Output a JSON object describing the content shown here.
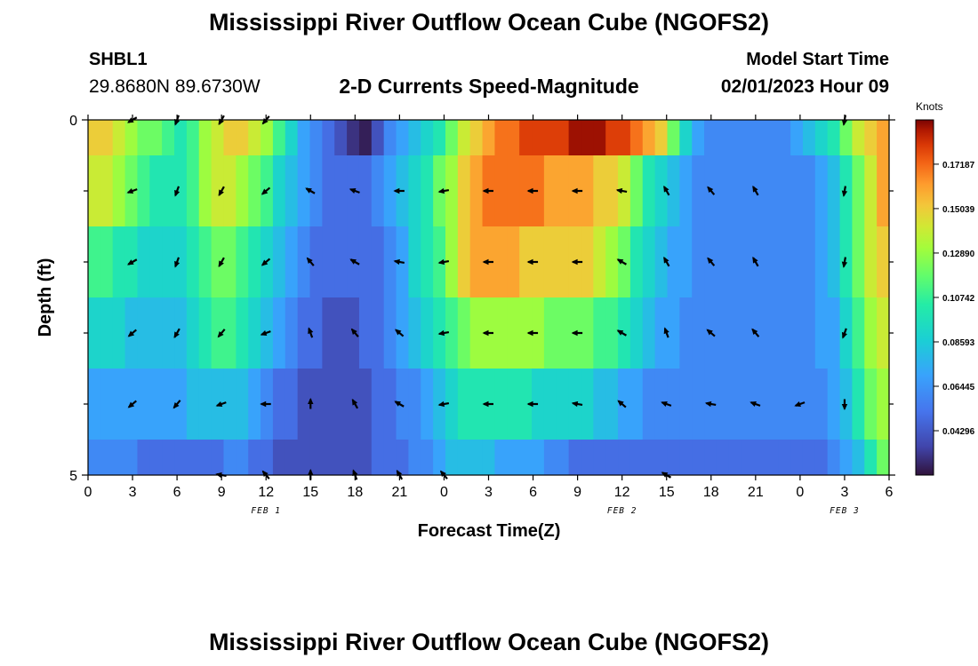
{
  "page": {
    "title_top": "Mississippi River Outflow Ocean Cube (NGOFS2)",
    "title_bottom": "Mississippi River Outflow Ocean Cube (NGOFS2)",
    "station_id": "SHBL1",
    "station_coords": "29.8680N  89.6730W",
    "subtitle": "2-D Currents Speed-Magnitude",
    "model_start_label": "Model Start Time",
    "model_start_value": "02/01/2023 Hour 09"
  },
  "chart_data": {
    "type": "heatmap",
    "title": "2-D Currents Speed-Magnitude",
    "xlabel": "Forecast Time(Z)",
    "ylabel": "Depth (ft)",
    "x_range_hours": [
      0,
      54
    ],
    "ylim": [
      0,
      5
    ],
    "x_ticks": [
      "0",
      "3",
      "6",
      "9",
      "12",
      "15",
      "18",
      "21",
      "0",
      "3",
      "6",
      "9",
      "12",
      "15",
      "18",
      "21",
      "0",
      "3",
      "6"
    ],
    "date_labels": [
      {
        "label": "FEB 1",
        "at_hour": 12
      },
      {
        "label": "FEB 2",
        "at_hour": 36
      },
      {
        "label": "FEB 3",
        "at_hour": 51
      }
    ],
    "y_tick_labels": [
      {
        "value": 0,
        "label": "0"
      },
      {
        "value": 5,
        "label": "5"
      }
    ],
    "y_minor_ticks": [
      1,
      2,
      3,
      4
    ],
    "colorbar": {
      "units": "Knots",
      "min": 0.0215,
      "max": 0.1933,
      "tick_values": [
        0.04296,
        0.06445,
        0.08593,
        0.10742,
        0.1289,
        0.15039,
        0.17187
      ],
      "tick_labels": [
        "0.04296",
        "0.06445",
        "0.08593",
        "0.10742",
        "0.12890",
        "0.15039",
        "0.17187"
      ]
    },
    "layers": [
      {
        "depth_top": 0.0,
        "depth_bottom": 0.5,
        "speeds": [
          0.15,
          0.15,
          0.14,
          0.13,
          0.12,
          0.12,
          0.11,
          0.1,
          0.11,
          0.13,
          0.14,
          0.15,
          0.15,
          0.14,
          0.13,
          0.11,
          0.09,
          0.07,
          0.06,
          0.05,
          0.04,
          0.03,
          0.025,
          0.04,
          0.06,
          0.07,
          0.08,
          0.09,
          0.1,
          0.12,
          0.14,
          0.15,
          0.16,
          0.17,
          0.17,
          0.18,
          0.18,
          0.18,
          0.18,
          0.19,
          0.19,
          0.19,
          0.18,
          0.18,
          0.17,
          0.16,
          0.15,
          0.12,
          0.09,
          0.07,
          0.06,
          0.06,
          0.06,
          0.06,
          0.06,
          0.06,
          0.06,
          0.07,
          0.08,
          0.09,
          0.1,
          0.12,
          0.14,
          0.15,
          0.16
        ]
      },
      {
        "depth_top": 0.5,
        "depth_bottom": 1.5,
        "speeds": [
          0.14,
          0.14,
          0.13,
          0.12,
          0.11,
          0.1,
          0.1,
          0.1,
          0.11,
          0.13,
          0.14,
          0.14,
          0.13,
          0.12,
          0.11,
          0.09,
          0.08,
          0.07,
          0.06,
          0.05,
          0.05,
          0.05,
          0.05,
          0.06,
          0.07,
          0.08,
          0.09,
          0.1,
          0.12,
          0.13,
          0.15,
          0.16,
          0.17,
          0.17,
          0.17,
          0.17,
          0.17,
          0.16,
          0.16,
          0.16,
          0.16,
          0.15,
          0.15,
          0.14,
          0.12,
          0.1,
          0.09,
          0.08,
          0.07,
          0.06,
          0.06,
          0.06,
          0.06,
          0.06,
          0.06,
          0.06,
          0.06,
          0.06,
          0.06,
          0.07,
          0.08,
          0.1,
          0.12,
          0.14,
          0.16
        ]
      },
      {
        "depth_top": 1.5,
        "depth_bottom": 2.5,
        "speeds": [
          0.11,
          0.11,
          0.1,
          0.1,
          0.09,
          0.09,
          0.09,
          0.09,
          0.1,
          0.11,
          0.12,
          0.12,
          0.11,
          0.1,
          0.09,
          0.08,
          0.07,
          0.06,
          0.05,
          0.05,
          0.05,
          0.05,
          0.05,
          0.05,
          0.06,
          0.07,
          0.09,
          0.1,
          0.11,
          0.13,
          0.15,
          0.16,
          0.16,
          0.16,
          0.16,
          0.15,
          0.15,
          0.15,
          0.15,
          0.15,
          0.15,
          0.14,
          0.13,
          0.12,
          0.1,
          0.09,
          0.08,
          0.07,
          0.07,
          0.06,
          0.06,
          0.06,
          0.06,
          0.06,
          0.06,
          0.06,
          0.06,
          0.06,
          0.06,
          0.07,
          0.08,
          0.1,
          0.12,
          0.14,
          0.15
        ]
      },
      {
        "depth_top": 2.5,
        "depth_bottom": 3.5,
        "speeds": [
          0.09,
          0.09,
          0.09,
          0.08,
          0.08,
          0.08,
          0.08,
          0.08,
          0.09,
          0.1,
          0.11,
          0.11,
          0.1,
          0.09,
          0.08,
          0.07,
          0.06,
          0.05,
          0.05,
          0.04,
          0.04,
          0.04,
          0.05,
          0.05,
          0.06,
          0.07,
          0.08,
          0.09,
          0.1,
          0.11,
          0.12,
          0.13,
          0.13,
          0.13,
          0.13,
          0.13,
          0.13,
          0.12,
          0.12,
          0.12,
          0.12,
          0.11,
          0.11,
          0.1,
          0.09,
          0.08,
          0.07,
          0.07,
          0.06,
          0.06,
          0.06,
          0.06,
          0.06,
          0.06,
          0.06,
          0.06,
          0.06,
          0.06,
          0.06,
          0.07,
          0.07,
          0.09,
          0.11,
          0.13,
          0.14
        ]
      },
      {
        "depth_top": 3.5,
        "depth_bottom": 4.5,
        "speeds": [
          0.07,
          0.07,
          0.07,
          0.07,
          0.07,
          0.07,
          0.07,
          0.07,
          0.08,
          0.08,
          0.08,
          0.08,
          0.08,
          0.07,
          0.06,
          0.05,
          0.05,
          0.04,
          0.04,
          0.04,
          0.04,
          0.04,
          0.04,
          0.05,
          0.05,
          0.06,
          0.06,
          0.07,
          0.08,
          0.09,
          0.1,
          0.1,
          0.1,
          0.1,
          0.1,
          0.1,
          0.09,
          0.09,
          0.09,
          0.09,
          0.09,
          0.08,
          0.08,
          0.07,
          0.07,
          0.06,
          0.06,
          0.06,
          0.06,
          0.06,
          0.06,
          0.06,
          0.06,
          0.06,
          0.06,
          0.06,
          0.06,
          0.06,
          0.06,
          0.06,
          0.07,
          0.08,
          0.1,
          0.12,
          0.13
        ]
      },
      {
        "depth_top": 4.5,
        "depth_bottom": 5.0,
        "speeds": [
          0.06,
          0.06,
          0.06,
          0.06,
          0.05,
          0.05,
          0.05,
          0.05,
          0.05,
          0.05,
          0.05,
          0.06,
          0.06,
          0.05,
          0.05,
          0.04,
          0.04,
          0.04,
          0.04,
          0.04,
          0.04,
          0.04,
          0.04,
          0.05,
          0.05,
          0.05,
          0.06,
          0.06,
          0.07,
          0.08,
          0.08,
          0.08,
          0.08,
          0.07,
          0.07,
          0.07,
          0.07,
          0.06,
          0.06,
          0.05,
          0.05,
          0.05,
          0.05,
          0.05,
          0.05,
          0.05,
          0.05,
          0.05,
          0.05,
          0.05,
          0.05,
          0.05,
          0.05,
          0.05,
          0.05,
          0.05,
          0.05,
          0.05,
          0.05,
          0.05,
          0.06,
          0.07,
          0.08,
          0.1,
          0.12
        ]
      }
    ],
    "vectors": {
      "hours": [
        3,
        6,
        9,
        12,
        15,
        18,
        21,
        24,
        27,
        30,
        33,
        36,
        39,
        42,
        45,
        48,
        51
      ],
      "depths": [
        0,
        1,
        2,
        3,
        4,
        5
      ],
      "directions_deg": [
        [
          240,
          200,
          210,
          220,
          null,
          null,
          null,
          null,
          null,
          null,
          null,
          null,
          null,
          null,
          null,
          null,
          190
        ],
        [
          250,
          200,
          210,
          230,
          300,
          290,
          270,
          260,
          270,
          270,
          270,
          280,
          330,
          320,
          330,
          null,
          190
        ],
        [
          240,
          200,
          210,
          230,
          320,
          300,
          280,
          260,
          270,
          270,
          270,
          300,
          330,
          320,
          330,
          null,
          190
        ],
        [
          230,
          210,
          220,
          250,
          340,
          320,
          310,
          260,
          270,
          270,
          270,
          300,
          340,
          310,
          320,
          null,
          200
        ],
        [
          230,
          220,
          250,
          270,
          0,
          330,
          300,
          260,
          270,
          270,
          280,
          310,
          290,
          280,
          290,
          250,
          180
        ],
        [
          null,
          null,
          280,
          320,
          0,
          340,
          330,
          320,
          null,
          null,
          null,
          null,
          300,
          null,
          null,
          null,
          null
        ]
      ]
    }
  }
}
